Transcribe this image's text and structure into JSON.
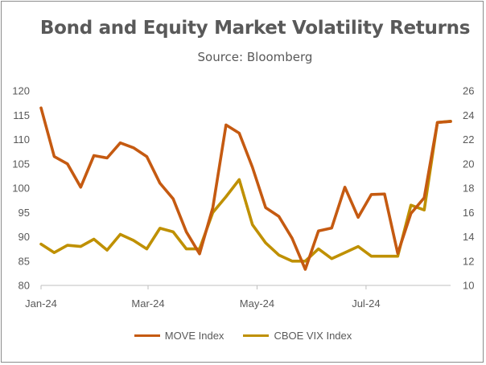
{
  "chart_data": {
    "type": "line",
    "title": "Bond and Equity Market Volatility Returns",
    "subtitle": "Source: Bloomberg",
    "x_tick_labels": [
      "Jan-24",
      "Mar-24",
      "May-24",
      "Jul-24"
    ],
    "left_axis": {
      "ylim": [
        80,
        120
      ],
      "ticks": [
        80,
        85,
        90,
        95,
        100,
        105,
        110,
        115,
        120
      ]
    },
    "right_axis": {
      "ylim": [
        10,
        26
      ],
      "ticks": [
        10,
        12,
        14,
        16,
        18,
        20,
        22,
        24,
        26
      ]
    },
    "grid": false,
    "legend_position": "bottom",
    "series": [
      {
        "name": "MOVE Index",
        "axis": "left",
        "color": "#C55A11",
        "values": [
          116.5,
          106.5,
          105.0,
          100.2,
          106.7,
          106.2,
          109.3,
          108.3,
          106.5,
          101.0,
          97.8,
          91.0,
          86.5,
          96.0,
          113.0,
          111.3,
          104.3,
          96.0,
          94.2,
          89.7,
          83.3,
          91.2,
          91.8,
          100.2,
          94.0,
          98.7,
          98.8,
          86.6,
          94.8,
          98.0,
          113.5,
          113.7
        ]
      },
      {
        "name": "CBOE VIX Index",
        "axis": "right",
        "color": "#BF9000",
        "values": [
          13.4,
          12.7,
          13.3,
          13.2,
          13.8,
          12.9,
          14.2,
          13.7,
          13.0,
          14.7,
          14.4,
          13.0,
          13.0,
          16.0,
          17.3,
          18.7,
          15.0,
          13.5,
          12.5,
          12.0,
          12.0,
          13.0,
          12.2,
          12.7,
          13.2,
          12.4,
          12.4,
          12.4,
          16.6,
          16.2,
          23.4,
          23.5
        ]
      }
    ]
  }
}
